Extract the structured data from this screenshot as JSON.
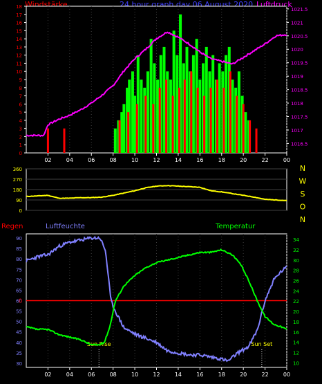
{
  "header": {
    "left": "Windstärke",
    "center": "24 hour graph day  06 August  2020",
    "right": "Luftdruck"
  },
  "compass_labels": [
    "N",
    "W",
    "S",
    "O",
    "N"
  ],
  "colors": {
    "background": "#000000",
    "frame": "#ffffff",
    "wind_speed": "#ff0000",
    "wind_gust": "#00ff00",
    "pressure": "#ff00ff",
    "wind_dir": "#ffff00",
    "humidity": "#8080ff",
    "temperature": "#00ff00",
    "rain": "#ff0000",
    "title": "#4040ff",
    "grid": "#404040",
    "sun_labels": "#ffff00"
  },
  "chart_data": [
    {
      "type": "bar",
      "name": "wind-pressure",
      "x_ticks": [
        "02",
        "04",
        "06",
        "08",
        "10",
        "12",
        "14",
        "16",
        "18",
        "20",
        "22",
        "00"
      ],
      "x_hours": [
        2,
        4,
        6,
        8,
        10,
        12,
        14,
        16,
        18,
        20,
        22,
        24
      ],
      "y_left_ticks": [
        0,
        1,
        2,
        3,
        4,
        5,
        6,
        7,
        8,
        9,
        10,
        11,
        12,
        13,
        14,
        15,
        16,
        17,
        18
      ],
      "y_left_range": [
        0,
        18
      ],
      "y_right_ticks": [
        "1016.5",
        "1017",
        "1017.5",
        "1018",
        "1018.5",
        "1019",
        "1019.5",
        "1020",
        "1020.5",
        "1021",
        "1021.5"
      ],
      "y_right_range": [
        1016.15,
        1021.6
      ],
      "gust_hours": [
        8.2,
        8.5,
        8.8,
        9.0,
        9.3,
        9.5,
        9.8,
        10.0,
        10.3,
        10.6,
        10.9,
        11.2,
        11.5,
        11.8,
        12.1,
        12.4,
        12.7,
        13.0,
        13.3,
        13.6,
        13.9,
        14.2,
        14.5,
        14.8,
        15.1,
        15.4,
        15.7,
        16.0,
        16.3,
        16.6,
        16.9,
        17.2,
        17.5,
        17.8,
        18.1,
        18.4,
        18.7,
        19.0,
        19.3,
        19.6,
        19.9,
        20.2,
        20.5
      ],
      "gust_values": [
        3,
        4,
        5,
        6,
        8,
        9,
        10,
        7,
        12,
        9,
        8,
        10,
        14,
        11,
        9,
        12,
        13,
        10,
        9,
        15,
        12,
        17,
        11,
        13,
        10,
        12,
        14,
        9,
        11,
        13,
        10,
        12,
        9,
        11,
        10,
        12,
        13,
        9,
        8,
        10,
        7,
        5,
        4
      ],
      "speed_hours": [
        2.0,
        3.5,
        8.6,
        9.4,
        10.2,
        11.0,
        11.7,
        12.3,
        12.9,
        13.5,
        14.1,
        14.6,
        15.2,
        15.8,
        16.4,
        17.0,
        17.6,
        18.2,
        18.8,
        19.4,
        20.0,
        20.6,
        21.2
      ],
      "speed_values": [
        3,
        3,
        4,
        5,
        6,
        7,
        6,
        8,
        9,
        7,
        8,
        9,
        10,
        8,
        7,
        8,
        9,
        8,
        10,
        7,
        6,
        4,
        3
      ],
      "pressure_hours": [
        0,
        1.6,
        2.0,
        3.0,
        4.0,
        5.0,
        6.0,
        7.0,
        8.0,
        9.0,
        10.0,
        11.0,
        12.0,
        13.0,
        14.0,
        15.0,
        16.0,
        17.0,
        18.0,
        19.0,
        20.0,
        21.0,
        22.0,
        23.0,
        24.0
      ],
      "pressure_values": [
        1016.8,
        1016.8,
        1017.2,
        1017.4,
        1017.55,
        1017.75,
        1018.0,
        1018.3,
        1018.65,
        1019.2,
        1019.65,
        1020.0,
        1020.4,
        1020.65,
        1020.45,
        1020.2,
        1019.9,
        1019.65,
        1019.55,
        1019.45,
        1019.7,
        1019.95,
        1020.2,
        1020.5,
        1020.55
      ]
    },
    {
      "type": "line",
      "name": "wind-direction",
      "y_ticks": [
        0,
        90,
        180,
        270,
        360
      ],
      "y_range": [
        0,
        360
      ],
      "hours": [
        0,
        1,
        2,
        3,
        4,
        5,
        6,
        7,
        8,
        9,
        10,
        11,
        12,
        13,
        14,
        15,
        16,
        17,
        18,
        19,
        20,
        21,
        22,
        23,
        24
      ],
      "values": [
        120,
        125,
        130,
        105,
        105,
        110,
        110,
        115,
        130,
        150,
        170,
        195,
        210,
        215,
        210,
        205,
        200,
        170,
        160,
        145,
        130,
        115,
        95,
        90,
        85
      ]
    },
    {
      "type": "line",
      "name": "temp-humidity",
      "labels": {
        "rain": "Regen",
        "humidity": "Luftfeuchte",
        "temperature": "Temperatur"
      },
      "rain_marker": "0",
      "y_left_ticks": [
        30,
        35,
        40,
        45,
        50,
        55,
        60,
        65,
        70,
        75,
        80,
        85,
        90
      ],
      "y_left_range": [
        28,
        92
      ],
      "y_right_ticks": [
        10,
        12,
        14,
        16,
        18,
        20,
        22,
        24,
        26,
        28,
        30,
        32,
        34
      ],
      "y_right_range": [
        9.1,
        35.1
      ],
      "humidity_hours": [
        0,
        1,
        2,
        3,
        4,
        5,
        6,
        6.8,
        7.3,
        7.8,
        8.2,
        9,
        10,
        11,
        12,
        13,
        14,
        15,
        16,
        17,
        18,
        18.6,
        19.5,
        20.5,
        21.3,
        22,
        22.8,
        23.5,
        24
      ],
      "humidity_values": [
        79,
        81,
        82,
        86,
        88,
        89,
        90,
        90,
        84,
        60,
        55,
        47,
        44,
        42,
        40,
        36,
        35,
        34,
        34,
        33,
        32,
        31,
        35,
        38,
        46,
        60,
        70,
        74,
        76
      ],
      "temperature_hours": [
        0,
        1,
        2,
        3,
        4,
        5,
        6,
        6.7,
        7.2,
        7.7,
        8.2,
        9,
        10,
        11,
        12,
        13,
        14,
        15,
        16,
        17,
        18,
        19,
        19.8,
        20.5,
        21.3,
        22,
        22.8,
        23.5,
        24
      ],
      "temperature_values": [
        17,
        16.5,
        16.5,
        15.5,
        15,
        14.5,
        13.5,
        13.5,
        14,
        17,
        22,
        25,
        27,
        28.5,
        29.5,
        30,
        30.5,
        31,
        31.5,
        31.5,
        32,
        31,
        29,
        26,
        22,
        19,
        17.5,
        17,
        16.5
      ],
      "sun_rise_label": "Sun Rise",
      "sun_rise_hour": 6.7,
      "sun_set_label": "Sun Set",
      "sun_set_hour": 21.7
    }
  ]
}
